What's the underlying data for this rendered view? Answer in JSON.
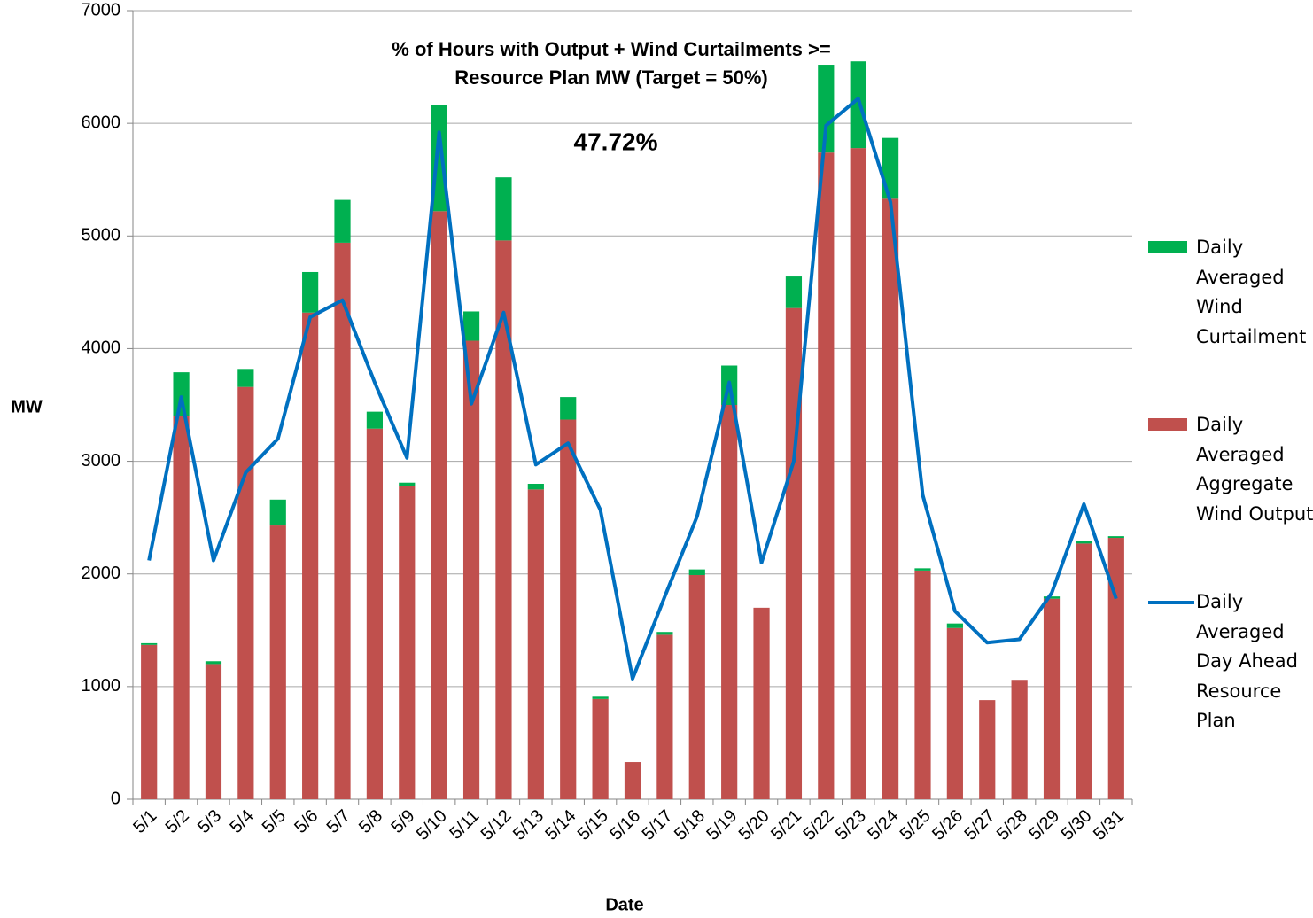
{
  "chart_data": {
    "type": "bar",
    "title": [
      "% of Hours with Output + Wind Curtailments >=",
      "Resource Plan MW (Target = 50%)"
    ],
    "annotation": "47.72%",
    "x_label": "Date",
    "y_label": "MW",
    "categories": [
      "5/1",
      "5/2",
      "5/3",
      "5/4",
      "5/5",
      "5/6",
      "5/7",
      "5/8",
      "5/9",
      "5/10",
      "5/11",
      "5/12",
      "5/13",
      "5/14",
      "5/15",
      "5/16",
      "5/17",
      "5/18",
      "5/19",
      "5/20",
      "5/21",
      "5/22",
      "5/23",
      "5/24",
      "5/25",
      "5/26",
      "5/27",
      "5/28",
      "5/29",
      "5/30",
      "5/31"
    ],
    "series": [
      {
        "name": "Daily Averaged Wind Curtailment",
        "color": "#00b050",
        "values": [
          15,
          390,
          25,
          160,
          230,
          360,
          380,
          150,
          30,
          940,
          260,
          560,
          50,
          200,
          20,
          0,
          25,
          50,
          350,
          0,
          280,
          780,
          770,
          540,
          20,
          40,
          0,
          0,
          20,
          20,
          15
        ]
      },
      {
        "name": "Daily Averaged Aggregate Wind Output",
        "color": "#c0504d",
        "values": [
          1370,
          3400,
          1200,
          3660,
          2430,
          4320,
          4940,
          3290,
          2780,
          5220,
          4070,
          4960,
          2750,
          3370,
          890,
          330,
          1460,
          1990,
          3500,
          1700,
          4360,
          5740,
          5780,
          5330,
          2030,
          1520,
          880,
          1060,
          1780,
          2270,
          2320
        ]
      },
      {
        "name": "Daily Averaged Day Ahead Resource Plan",
        "color": "#0070c0",
        "values": [
          2120,
          3570,
          2120,
          2900,
          3200,
          4280,
          4430,
          3700,
          3030,
          5920,
          3510,
          4320,
          2970,
          3160,
          2570,
          1070,
          1800,
          2510,
          3700,
          2100,
          3000,
          5980,
          6220,
          5300,
          2700,
          1670,
          1390,
          1420,
          1830,
          2620,
          1780
        ]
      }
    ],
    "ylim": [
      0,
      7000
    ],
    "yticks": [
      0,
      1000,
      2000,
      3000,
      4000,
      5000,
      6000,
      7000
    ],
    "grid": true
  }
}
